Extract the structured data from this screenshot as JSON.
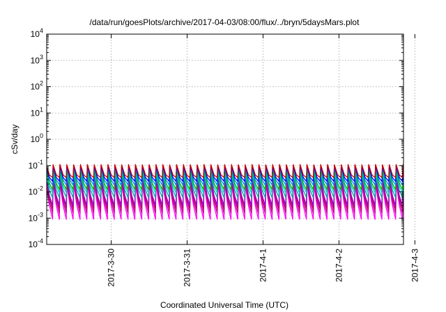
{
  "chart_data": {
    "type": "line",
    "title": "/data/run/goesPlots/archive/2017-04-03/08:00/flux/../bryn/5daysMars.plot",
    "xlabel": "Coordinated Universal Time (UTC)",
    "ylabel": "cSv/day",
    "yscale": "log",
    "ylim": [
      0.0001,
      10000
    ],
    "xlim_days": [
      -1.35,
      3.35
    ],
    "y_ticks": [
      {
        "mantissa": "10",
        "exp": "-4",
        "value": 0.0001
      },
      {
        "mantissa": "10",
        "exp": "-3",
        "value": 0.001
      },
      {
        "mantissa": "10",
        "exp": "-2",
        "value": 0.01
      },
      {
        "mantissa": "10",
        "exp": "-1",
        "value": 0.1
      },
      {
        "mantissa": "10",
        "exp": "0",
        "value": 1
      },
      {
        "mantissa": "10",
        "exp": "1",
        "value": 10
      },
      {
        "mantissa": "10",
        "exp": "2",
        "value": 100
      },
      {
        "mantissa": "10",
        "exp": "3",
        "value": 1000
      },
      {
        "mantissa": "10",
        "exp": "4",
        "value": 10000
      }
    ],
    "x_ticks": [
      {
        "label": "2017-3-30",
        "day": -0.5
      },
      {
        "label": "2017-3-31",
        "day": 0.5
      },
      {
        "label": "2017-4-1",
        "day": 1.5
      },
      {
        "label": "2017-4-2",
        "day": 2.5
      },
      {
        "label": "2017-4-3",
        "day": 3.5
      }
    ],
    "grid": true,
    "legend": "none",
    "pattern": {
      "cycles": 52,
      "description": "repeating sawtooth: sharp rise followed by decay"
    },
    "series": [
      {
        "color": "#ff00ff",
        "peak": 0.02,
        "trough": 0.0009
      },
      {
        "color": "#cc0099",
        "peak": 0.025,
        "trough": 0.0015
      },
      {
        "color": "#b0005a",
        "peak": 0.03,
        "trough": 0.0022
      },
      {
        "color": "#9900cc",
        "peak": 0.035,
        "trough": 0.003
      },
      {
        "color": "#00a0a0",
        "peak": 0.045,
        "trough": 0.006
      },
      {
        "color": "#00cccc",
        "peak": 0.06,
        "trough": 0.009
      },
      {
        "color": "#00b000",
        "peak": 0.075,
        "trough": 0.012
      },
      {
        "color": "#0080ff",
        "peak": 0.09,
        "trough": 0.018
      },
      {
        "color": "#0000ff",
        "peak": 0.1,
        "trough": 0.025
      },
      {
        "color": "#cc0000",
        "peak": 0.11,
        "trough": 0.035
      }
    ]
  }
}
